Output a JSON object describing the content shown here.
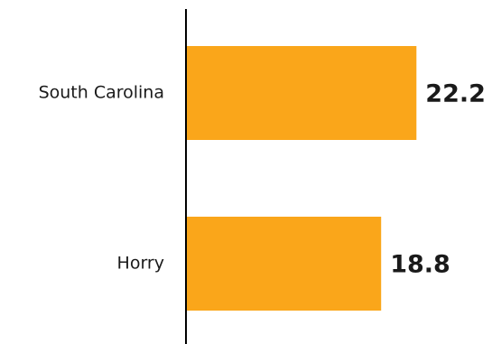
{
  "chart_data": {
    "type": "bar",
    "orientation": "horizontal",
    "categories": [
      "South Carolina",
      "Horry"
    ],
    "values": [
      22.2,
      18.8
    ],
    "value_labels": [
      "22.2",
      "18.8"
    ],
    "title": "",
    "xlabel": "",
    "ylabel": "",
    "xlim": [
      0,
      26
    ],
    "grid": false,
    "legend": "none",
    "bar_color": "#FAA61A",
    "axis_color": "#000000"
  }
}
